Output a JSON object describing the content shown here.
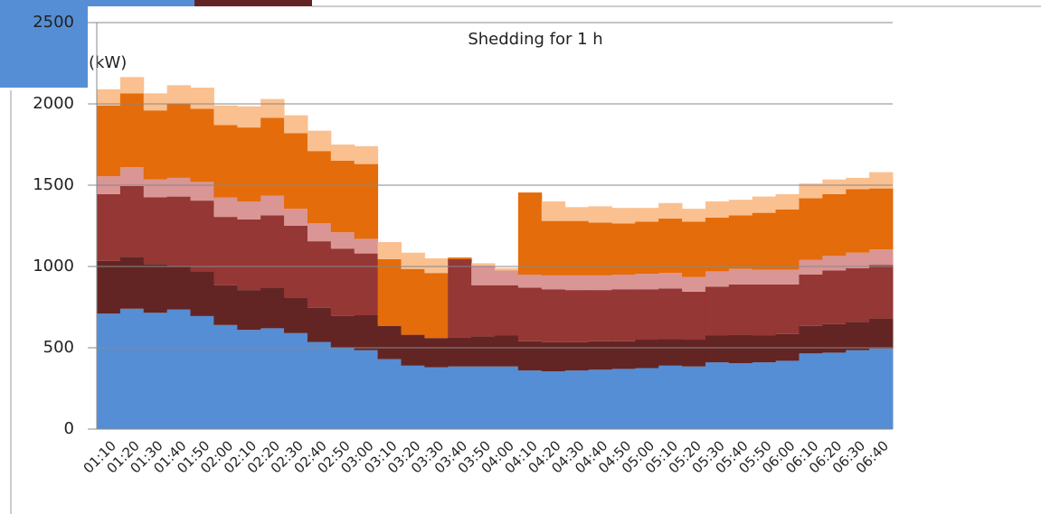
{
  "chart_data": {
    "type": "stacked_bar",
    "title": "Shedding for 1 h",
    "y_label": "(kW)",
    "categories": [
      "01:10",
      "01:20",
      "01:30",
      "01:40",
      "01:50",
      "02:00",
      "02:10",
      "02:20",
      "02:30",
      "02:40",
      "02:50",
      "03:00",
      "03:10",
      "03:20",
      "03:30",
      "03:40",
      "03:50",
      "04:00",
      "04:10",
      "04:20",
      "04:30",
      "04:40",
      "04:50",
      "05:00",
      "05:10",
      "05:20",
      "05:30",
      "05:40",
      "05:50",
      "06:00",
      "06:10",
      "06:20",
      "06:30",
      "06:40"
    ],
    "series": [
      {
        "color": "#558ed5",
        "values": [
          710,
          740,
          715,
          735,
          695,
          640,
          610,
          620,
          590,
          535,
          500,
          485,
          430,
          390,
          380,
          385,
          385,
          385,
          360,
          355,
          360,
          365,
          370,
          375,
          390,
          385,
          410,
          405,
          410,
          420,
          465,
          470,
          485,
          495
        ]
      },
      {
        "color": "#632523",
        "values": [
          325,
          320,
          300,
          265,
          275,
          245,
          245,
          250,
          220,
          210,
          195,
          215,
          205,
          190,
          180,
          180,
          185,
          190,
          180,
          180,
          175,
          175,
          170,
          175,
          165,
          165,
          165,
          175,
          165,
          165,
          170,
          175,
          175,
          185
        ]
      },
      {
        "color": "#953735",
        "values": [
          410,
          435,
          410,
          430,
          435,
          420,
          435,
          445,
          440,
          410,
          415,
          380,
          0,
          0,
          0,
          480,
          315,
          310,
          330,
          325,
          320,
          315,
          320,
          310,
          310,
          295,
          300,
          310,
          315,
          305,
          315,
          330,
          330,
          330
        ]
      },
      {
        "color": "#d99694",
        "values": [
          110,
          115,
          110,
          115,
          115,
          120,
          110,
          120,
          105,
          110,
          100,
          90,
          0,
          0,
          0,
          0,
          120,
          90,
          80,
          85,
          90,
          90,
          90,
          95,
          95,
          90,
          95,
          95,
          90,
          90,
          90,
          90,
          95,
          95
        ]
      },
      {
        "color": "#e46c0a",
        "values": [
          435,
          455,
          425,
          455,
          450,
          445,
          455,
          480,
          465,
          445,
          440,
          460,
          410,
          405,
          400,
          10,
          0,
          0,
          505,
          335,
          335,
          325,
          315,
          320,
          335,
          340,
          330,
          330,
          350,
          370,
          380,
          380,
          390,
          375
        ]
      },
      {
        "color": "#fac090",
        "values": [
          100,
          100,
          105,
          115,
          130,
          120,
          130,
          115,
          110,
          125,
          100,
          110,
          105,
          100,
          90,
          0,
          15,
          15,
          0,
          120,
          85,
          100,
          95,
          85,
          95,
          80,
          100,
          95,
          100,
          95,
          90,
          90,
          70,
          100
        ]
      }
    ],
    "ylim": [
      0,
      2500
    ],
    "yticks": [
      0,
      500,
      1000,
      1500,
      2000,
      2500
    ],
    "grid": true
  }
}
